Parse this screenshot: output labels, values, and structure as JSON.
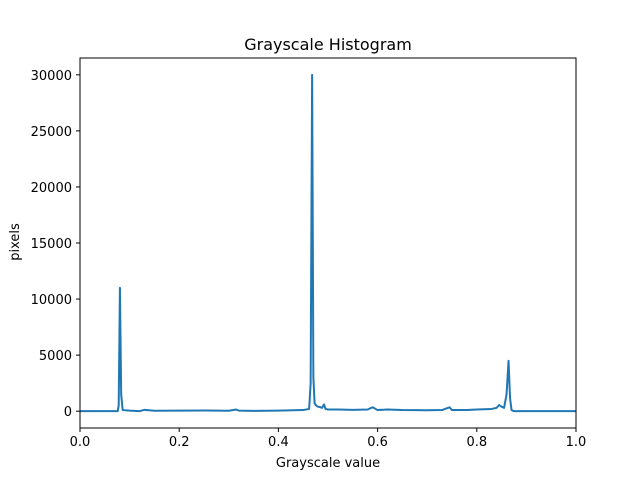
{
  "chart_data": {
    "type": "line",
    "title": "Grayscale Histogram",
    "xlabel": "Grayscale value",
    "ylabel": "pixels",
    "xlim": [
      0.0,
      1.0
    ],
    "ylim": [
      -1500,
      31500
    ],
    "x_ticks": [
      0.0,
      0.2,
      0.4,
      0.6,
      0.8,
      1.0
    ],
    "x_tick_labels": [
      "0.0",
      "0.2",
      "0.4",
      "0.6",
      "0.8",
      "1.0"
    ],
    "y_ticks": [
      0,
      5000,
      10000,
      15000,
      20000,
      25000,
      30000
    ],
    "y_tick_labels": [
      "0",
      "5000",
      "10000",
      "15000",
      "20000",
      "25000",
      "30000"
    ],
    "grid": false,
    "legend": "none",
    "series": [
      {
        "color": "#1f77b4",
        "x": [
          0.0,
          0.076,
          0.078,
          0.0805,
          0.083,
          0.086,
          0.1,
          0.12,
          0.13,
          0.15,
          0.2,
          0.25,
          0.3,
          0.315,
          0.32,
          0.35,
          0.4,
          0.45,
          0.462,
          0.465,
          0.468,
          0.4705,
          0.473,
          0.476,
          0.48,
          0.485,
          0.488,
          0.492,
          0.495,
          0.5,
          0.52,
          0.55,
          0.58,
          0.59,
          0.6,
          0.62,
          0.65,
          0.7,
          0.73,
          0.745,
          0.75,
          0.78,
          0.8,
          0.83,
          0.84,
          0.845,
          0.85,
          0.855,
          0.86,
          0.864,
          0.867,
          0.87,
          0.875,
          0.9,
          0.95,
          1.0
        ],
        "y": [
          0,
          0,
          500,
          11000,
          1500,
          100,
          50,
          0,
          120,
          40,
          50,
          60,
          40,
          150,
          50,
          30,
          50,
          100,
          200,
          2500,
          30000,
          3000,
          700,
          500,
          400,
          350,
          300,
          600,
          200,
          150,
          150,
          120,
          150,
          350,
          100,
          150,
          100,
          80,
          100,
          350,
          100,
          100,
          150,
          200,
          300,
          550,
          400,
          300,
          1500,
          4500,
          1200,
          100,
          0,
          0,
          0,
          0
        ]
      }
    ]
  }
}
